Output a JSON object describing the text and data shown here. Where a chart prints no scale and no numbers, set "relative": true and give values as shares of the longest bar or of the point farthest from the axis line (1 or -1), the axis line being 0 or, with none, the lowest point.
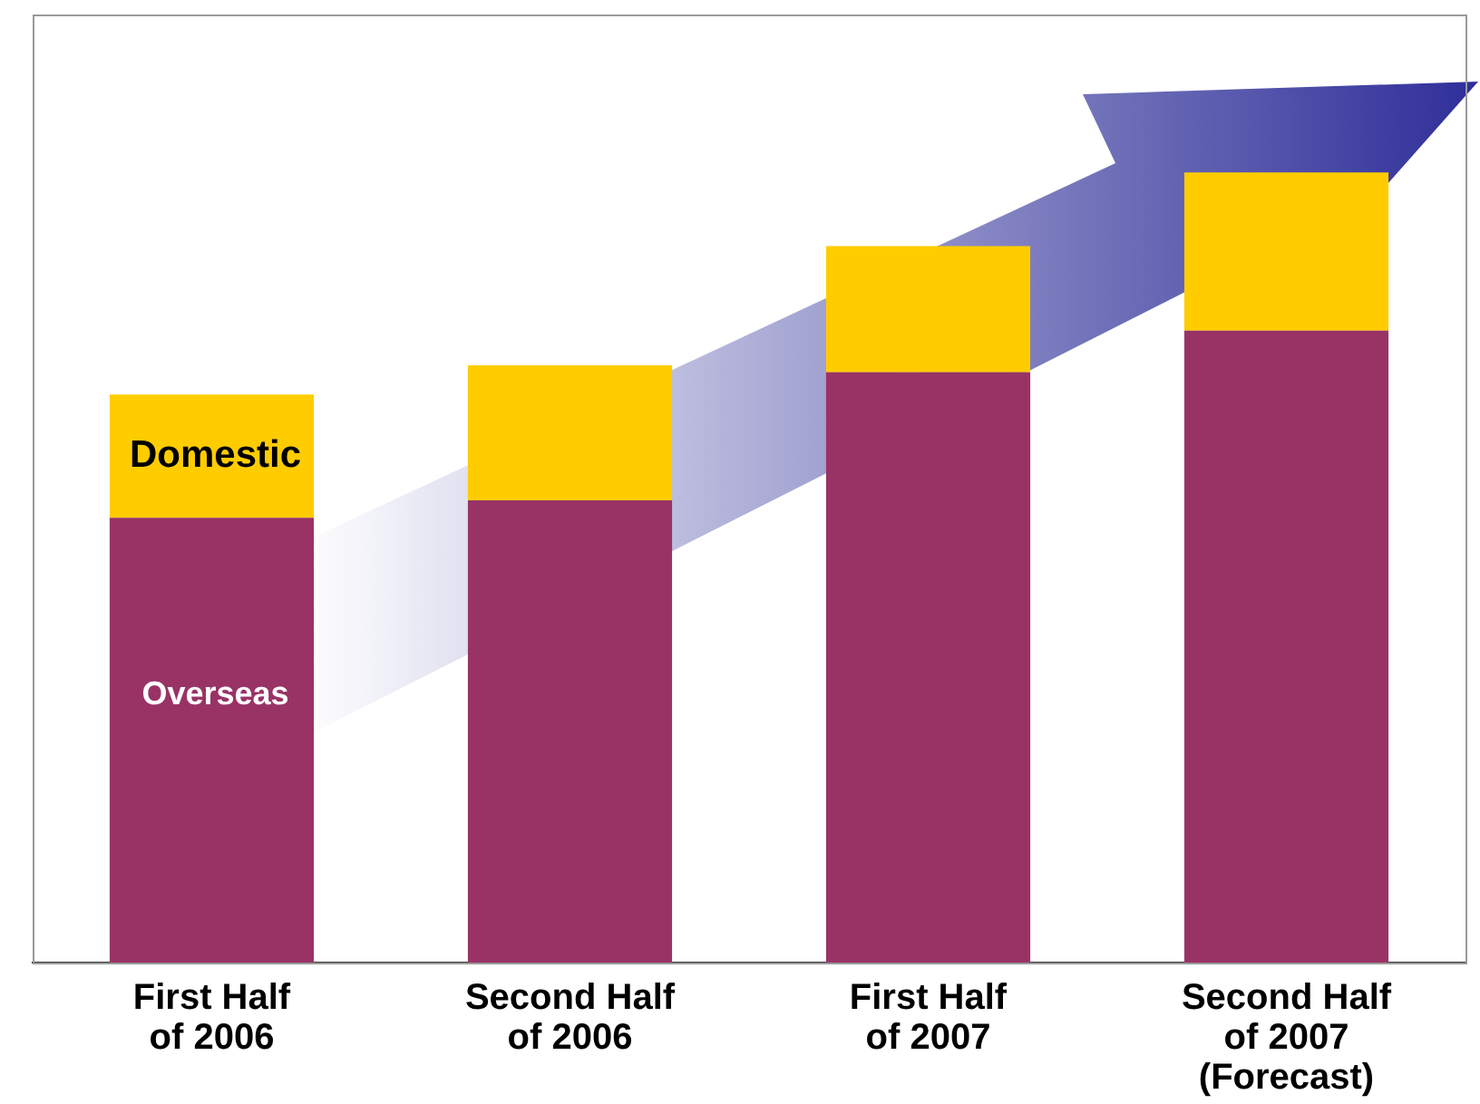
{
  "chart_data": {
    "type": "bar",
    "stacked": true,
    "relative": true,
    "legend": false,
    "categories": [
      "First Half\nof 2006",
      "Second Half\nof 2006",
      "First Half\nof 2007",
      "Second Half\nof 2007\n(Forecast)"
    ],
    "series": [
      {
        "name": "Overseas",
        "color": "#993366",
        "values": [
          0.563,
          0.585,
          0.747,
          0.8
        ]
      },
      {
        "name": "Domestic",
        "color": "#ffcc00",
        "values": [
          0.156,
          0.171,
          0.16,
          0.2
        ]
      }
    ]
  }
}
